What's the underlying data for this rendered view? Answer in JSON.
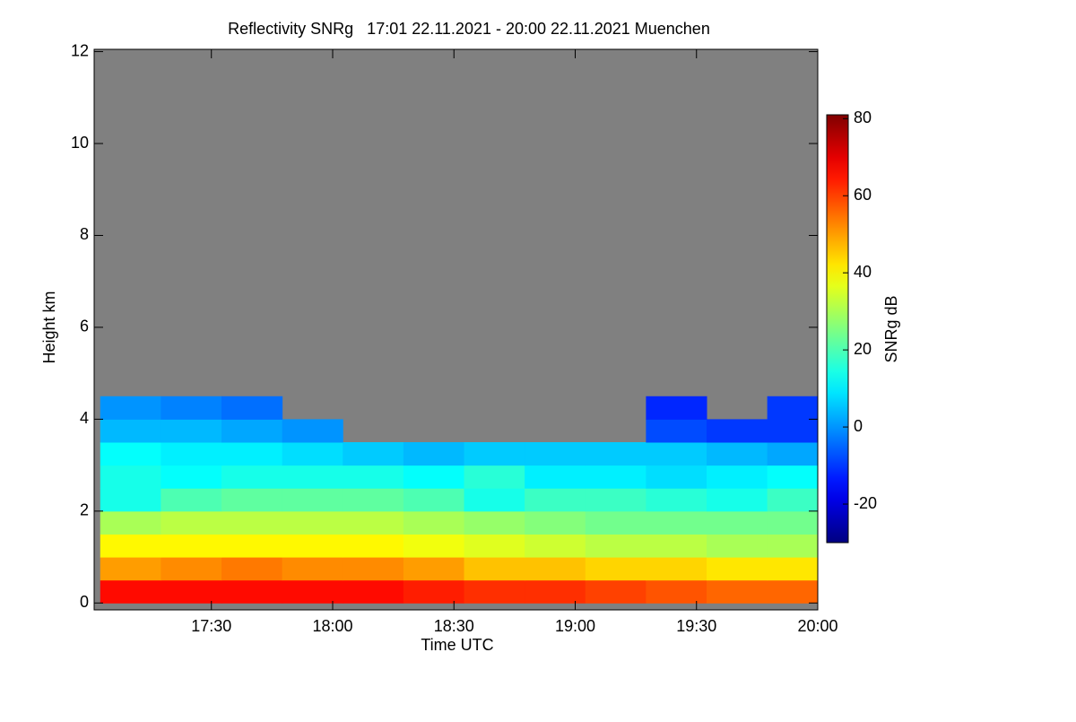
{
  "chart_data": {
    "type": "heatmap",
    "title": "Reflectivity SNRg   17:01 22.11.2021 - 20:00 22.11.2021 Muenchen",
    "xlabel": "Time UTC",
    "ylabel": "Height km",
    "colorbar_label": "SNRg dB",
    "colormap": "jet",
    "background": "#808080",
    "xlim": [
      "17:01",
      "20:00"
    ],
    "xticks": [
      "17:30",
      "18:00",
      "18:30",
      "19:00",
      "19:30",
      "20:00"
    ],
    "ylim": [
      -0.15,
      12.05
    ],
    "yticks": [
      0,
      2,
      4,
      6,
      8,
      10,
      12
    ],
    "zlim": [
      -30,
      81
    ],
    "zticks": [
      -20,
      0,
      20,
      40,
      60,
      80
    ],
    "x": [
      "17:10",
      "17:25",
      "17:40",
      "17:55",
      "18:10",
      "18:25",
      "18:40",
      "18:55",
      "19:10",
      "19:25",
      "19:40",
      "19:55"
    ],
    "y": [
      0.25,
      0.75,
      1.25,
      1.75,
      2.25,
      2.75,
      3.25,
      3.75,
      4.25
    ],
    "z": [
      [
        66,
        66,
        66,
        66,
        66,
        64,
        62,
        62,
        60,
        58,
        56,
        56
      ],
      [
        50,
        52,
        54,
        52,
        52,
        50,
        46,
        46,
        44,
        44,
        42,
        42
      ],
      [
        40,
        40,
        40,
        40,
        40,
        38,
        36,
        34,
        32,
        32,
        30,
        30
      ],
      [
        30,
        32,
        32,
        32,
        32,
        30,
        28,
        26,
        24,
        24,
        24,
        24
      ],
      [
        14,
        20,
        22,
        22,
        22,
        20,
        14,
        18,
        18,
        16,
        14,
        18
      ],
      [
        14,
        12,
        14,
        14,
        14,
        12,
        16,
        10,
        10,
        8,
        10,
        12
      ],
      [
        12,
        10,
        10,
        8,
        6,
        4,
        6,
        6,
        6,
        6,
        4,
        2
      ],
      [
        4,
        4,
        2,
        0,
        null,
        null,
        null,
        null,
        null,
        -8,
        -10,
        -10
      ],
      [
        0,
        -2,
        -4,
        null,
        null,
        null,
        null,
        null,
        null,
        -12,
        null,
        -10
      ]
    ]
  }
}
